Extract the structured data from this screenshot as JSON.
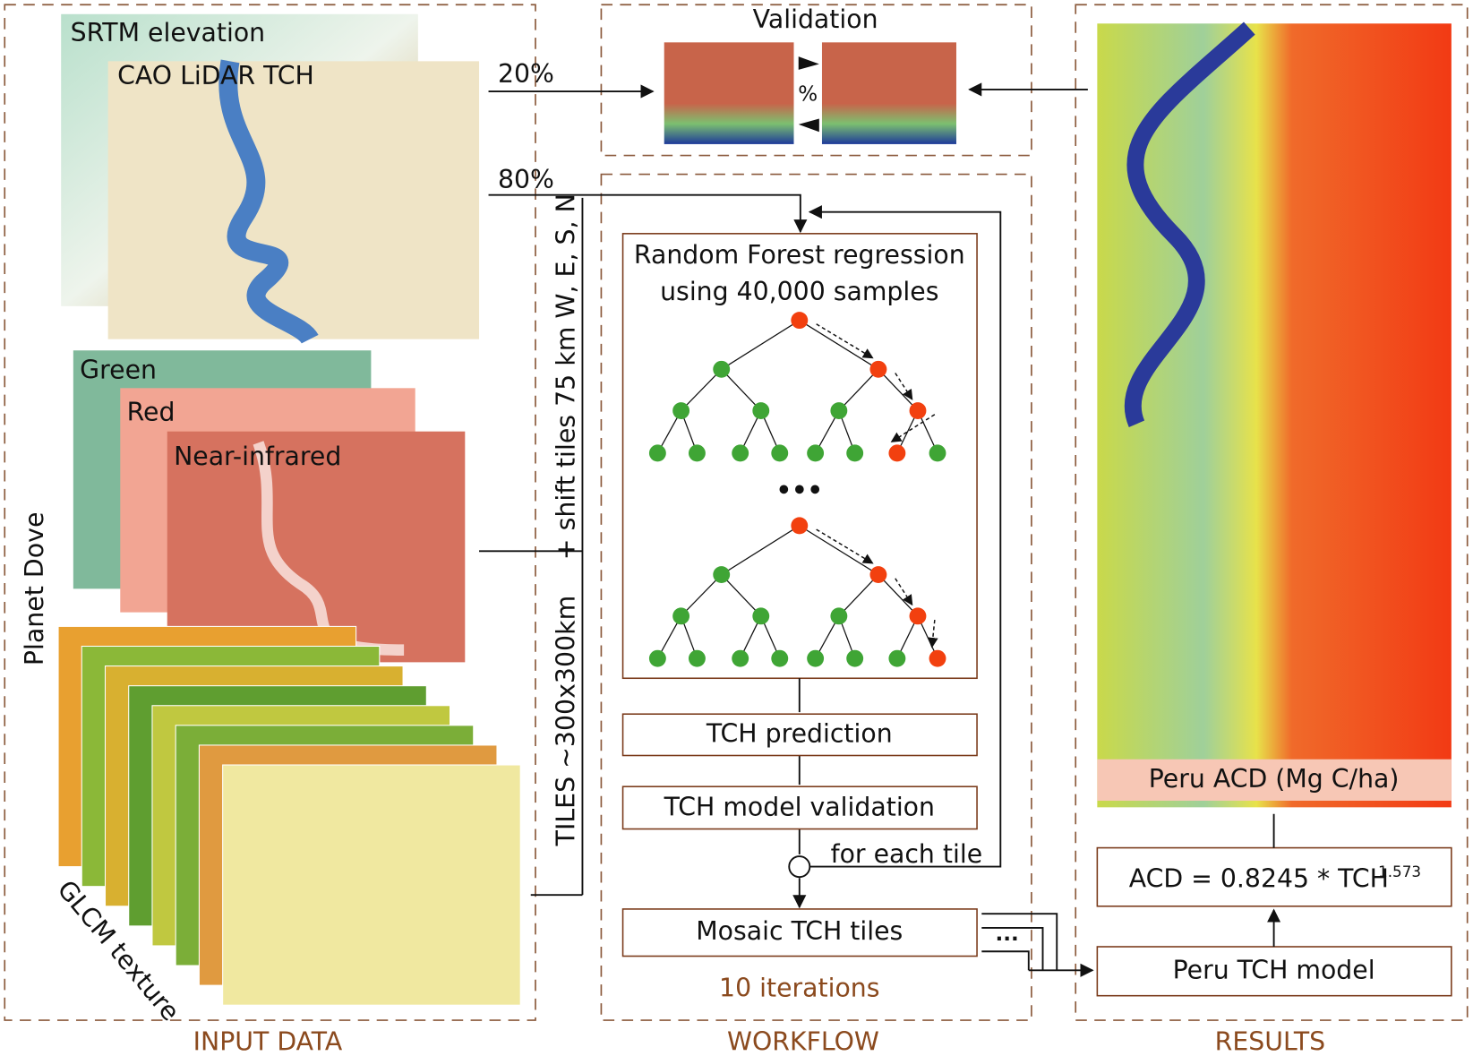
{
  "panels": {
    "input": "INPUT DATA",
    "workflow": "WORKFLOW",
    "results": "RESULTS"
  },
  "input": {
    "srtm": "SRTM elevation",
    "lidar": "CAO LiDAR TCH",
    "green": "Green",
    "red": "Red",
    "nir": "Near-infrared",
    "planet": "Planet Dove",
    "glcm": "GLCM texture"
  },
  "split": {
    "validation_share": "20%",
    "training_share": "80%",
    "shift": "+ shift tiles 75 km W, E, S, N",
    "tiles": "TILES ~300x300km"
  },
  "validation": {
    "title": "Validation",
    "symbol": "%"
  },
  "workflow": {
    "rf_line1": "Random Forest regression",
    "rf_line2": "using 40,000 samples",
    "ellipsis": "•••",
    "prediction": "TCH prediction",
    "model_validation": "TCH model validation",
    "loop": "for each tile",
    "mosaic": "Mosaic TCH tiles",
    "more": "...",
    "iterations": "10 iterations"
  },
  "results": {
    "map_label": "Peru ACD (Mg C/ha)",
    "equation": "ACD = 0.8245 * TCH",
    "exponent": "1.573",
    "tch_model": "Peru TCH model"
  }
}
